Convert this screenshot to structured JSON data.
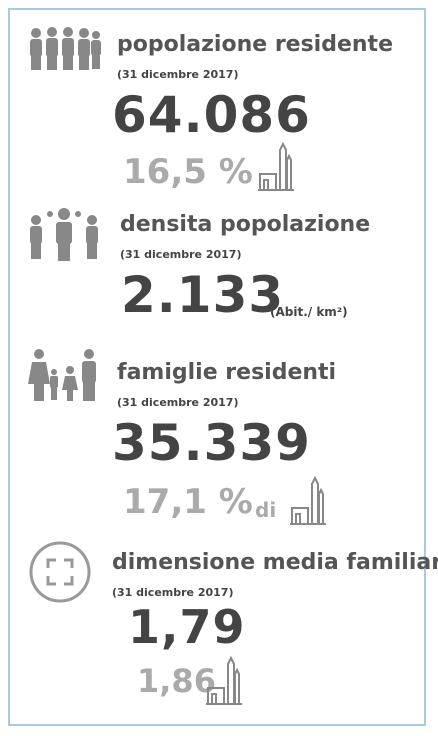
{
  "sections": [
    {
      "title": "popolazione residente",
      "date": "(31 dicembre 2017)",
      "value": "64.086",
      "share": "16,5 %"
    },
    {
      "title": "densita popolazione",
      "date": "(31 dicembre 2017)",
      "value": "2.133",
      "unit": "(Abit./ km²)"
    },
    {
      "title": "famiglie residenti",
      "date": "(31 dicembre 2017)",
      "value": "35.339",
      "share": "17,1 %",
      "share_suffix": "di"
    },
    {
      "title": "dimensione media familiare",
      "date": "(31 dicembre 2017)",
      "value": "1,79",
      "share": "1,86"
    }
  ]
}
